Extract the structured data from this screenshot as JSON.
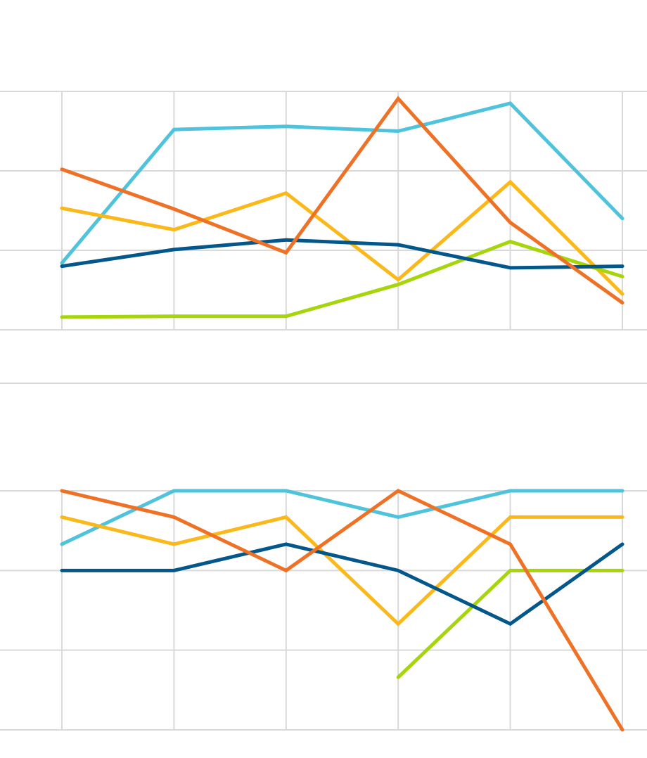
{
  "chart_data": [
    {
      "type": "line",
      "categories": [
        null,
        null,
        null,
        null,
        null,
        null
      ],
      "ylim": [
        0,
        3
      ],
      "yticks": [
        0,
        1,
        2,
        3
      ],
      "grid": true,
      "series": [
        {
          "color": "#4fc3dc",
          "values": [
            0.84,
            2.52,
            2.56,
            2.5,
            2.85,
            1.4
          ]
        },
        {
          "color": "#fbb81b",
          "values": [
            1.53,
            1.26,
            1.72,
            0.63,
            1.86,
            0.45
          ]
        },
        {
          "color": "#a5d50a",
          "values": [
            0.16,
            0.17,
            0.17,
            0.57,
            1.11,
            0.67
          ]
        },
        {
          "color": "#04578a",
          "values": [
            0.8,
            1.01,
            1.13,
            1.07,
            0.78,
            0.8
          ]
        },
        {
          "color": "#ef7125",
          "values": [
            2.02,
            1.52,
            0.97,
            2.91,
            1.35,
            0.34
          ]
        }
      ]
    },
    {
      "type": "line",
      "categories": [
        null,
        null,
        null,
        null,
        null,
        null
      ],
      "ylim": [
        0,
        3
      ],
      "yticks": [
        0,
        1,
        2,
        3
      ],
      "grid": true,
      "series": [
        {
          "color": "#4fc3dc",
          "values": [
            2.33,
            3,
            3,
            2.67,
            3,
            3
          ]
        },
        {
          "color": "#fbb81b",
          "values": [
            2.67,
            2.33,
            2.67,
            1.33,
            2.67,
            2.67
          ]
        },
        {
          "color": "#a5d50a",
          "values": [
            null,
            null,
            null,
            0.66,
            2,
            2
          ]
        },
        {
          "color": "#04578a",
          "values": [
            2,
            2,
            2.33,
            2,
            1.33,
            2.33
          ]
        },
        {
          "color": "#ef7125",
          "values": [
            3,
            2.67,
            2,
            3,
            2.33,
            0
          ]
        }
      ]
    }
  ]
}
